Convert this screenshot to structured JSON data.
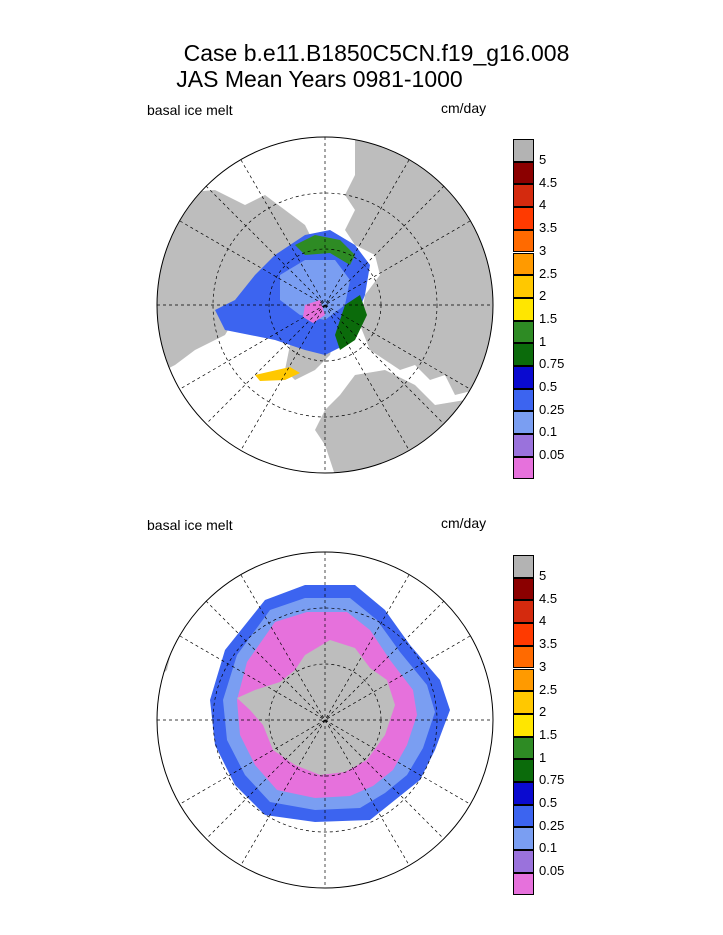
{
  "header": {
    "case_line": "Case b.e11.B1850C5CN.f19_g16.008",
    "period_line": "JAS Mean    Years 0981-1000"
  },
  "panels": [
    {
      "id": "north",
      "label": "basal ice melt",
      "units": "cm/day"
    },
    {
      "id": "south",
      "label": "basal ice melt",
      "units": "cm/day"
    }
  ],
  "legend": {
    "levels": [
      {
        "value": "5",
        "color": "#b3b3b3"
      },
      {
        "value": "4.5",
        "color": "#8b0000"
      },
      {
        "value": "4",
        "color": "#d42a0e"
      },
      {
        "value": "3.5",
        "color": "#ff3a00"
      },
      {
        "value": "3",
        "color": "#ff6a00"
      },
      {
        "value": "2.5",
        "color": "#ff9a00"
      },
      {
        "value": "2",
        "color": "#ffc800"
      },
      {
        "value": "1.5",
        "color": "#ffe600"
      },
      {
        "value": "1",
        "color": "#2e8b24"
      },
      {
        "value": "0.75",
        "color": "#0b6b0b"
      },
      {
        "value": "0.5",
        "color": "#0a0ad0"
      },
      {
        "value": "0.25",
        "color": "#3c64f0"
      },
      {
        "value": "0.1",
        "color": "#7a9ef2"
      },
      {
        "value": "0.05",
        "color": "#9a72dc"
      },
      {
        "value": "",
        "color": "#e671dc"
      }
    ]
  },
  "colors": {
    "land": "#bdbdbd",
    "ocean": "#ffffff",
    "ice_lowest": "#e671dc",
    "ice_low": "#7a9ef2",
    "ice_mid": "#3c64f0",
    "ice_dark": "#0a0ad0",
    "ice_green": "#2e8b24",
    "ice_darkgreen": "#0b6b0b",
    "ice_yellow": "#ffc800"
  }
}
